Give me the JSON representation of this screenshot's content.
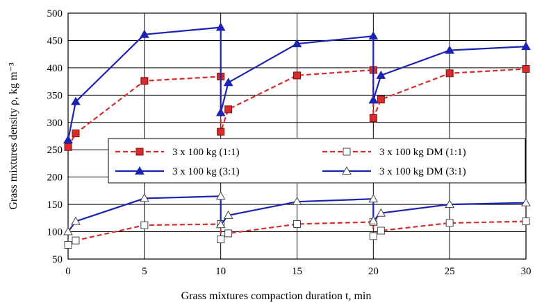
{
  "chart_data": {
    "type": "line",
    "title": "",
    "xlabel": "Grass mixtures compaction duration t, min",
    "ylabel": "Grass mixtures density ρ, kg m⁻³",
    "xlim": [
      0,
      30
    ],
    "ylim": [
      50,
      500
    ],
    "xticks": [
      "0",
      "5",
      "10",
      "15",
      "20",
      "25",
      "30"
    ],
    "yticks": [
      "50",
      "100",
      "150",
      "200",
      "250",
      "300",
      "350",
      "400",
      "450",
      "500"
    ],
    "grid": true,
    "legend_position": "center",
    "series": [
      {
        "name": "3 x 100 kg (1:1)",
        "color": "#d92b2b",
        "marker": "square-filled",
        "line": "dashed",
        "points": [
          [
            0,
            255
          ],
          [
            0.5,
            280
          ],
          [
            5,
            376
          ],
          [
            10,
            384
          ],
          [
            10,
            283
          ],
          [
            10.5,
            324
          ],
          [
            15,
            386
          ],
          [
            20,
            396
          ],
          [
            20,
            308
          ],
          [
            20.5,
            342
          ],
          [
            25,
            390
          ],
          [
            30,
            398
          ]
        ]
      },
      {
        "name": "3 x 100 kg DM (1:1)",
        "color": "#d92b2b",
        "marker": "square-open",
        "line": "dashed",
        "points": [
          [
            0,
            76
          ],
          [
            0.5,
            84
          ],
          [
            5,
            112
          ],
          [
            10,
            114
          ],
          [
            10,
            86
          ],
          [
            10.5,
            97
          ],
          [
            15,
            114
          ],
          [
            20,
            118
          ],
          [
            20,
            92
          ],
          [
            20.5,
            102
          ],
          [
            25,
            116
          ],
          [
            30,
            119
          ]
        ]
      },
      {
        "name": "3 x 100 kg (3:1)",
        "color": "#1c23b0",
        "marker": "triangle-filled",
        "line": "solid",
        "points": [
          [
            0,
            268
          ],
          [
            0.5,
            338
          ],
          [
            5,
            461
          ],
          [
            10,
            474
          ],
          [
            10,
            318
          ],
          [
            10.5,
            373
          ],
          [
            15,
            444
          ],
          [
            20,
            458
          ],
          [
            20,
            341
          ],
          [
            20.5,
            386
          ],
          [
            25,
            432
          ],
          [
            30,
            439
          ]
        ]
      },
      {
        "name": "3 x 100 kg DM (3:1)",
        "color": "#1c23b0",
        "marker": "triangle-open",
        "line": "solid",
        "points": [
          [
            0,
            100
          ],
          [
            0.5,
            119
          ],
          [
            5,
            161
          ],
          [
            10,
            165
          ],
          [
            10,
            113
          ],
          [
            10.5,
            130
          ],
          [
            15,
            155
          ],
          [
            20,
            160
          ],
          [
            20,
            120
          ],
          [
            20.5,
            134
          ],
          [
            25,
            150
          ],
          [
            30,
            153
          ]
        ]
      }
    ]
  }
}
